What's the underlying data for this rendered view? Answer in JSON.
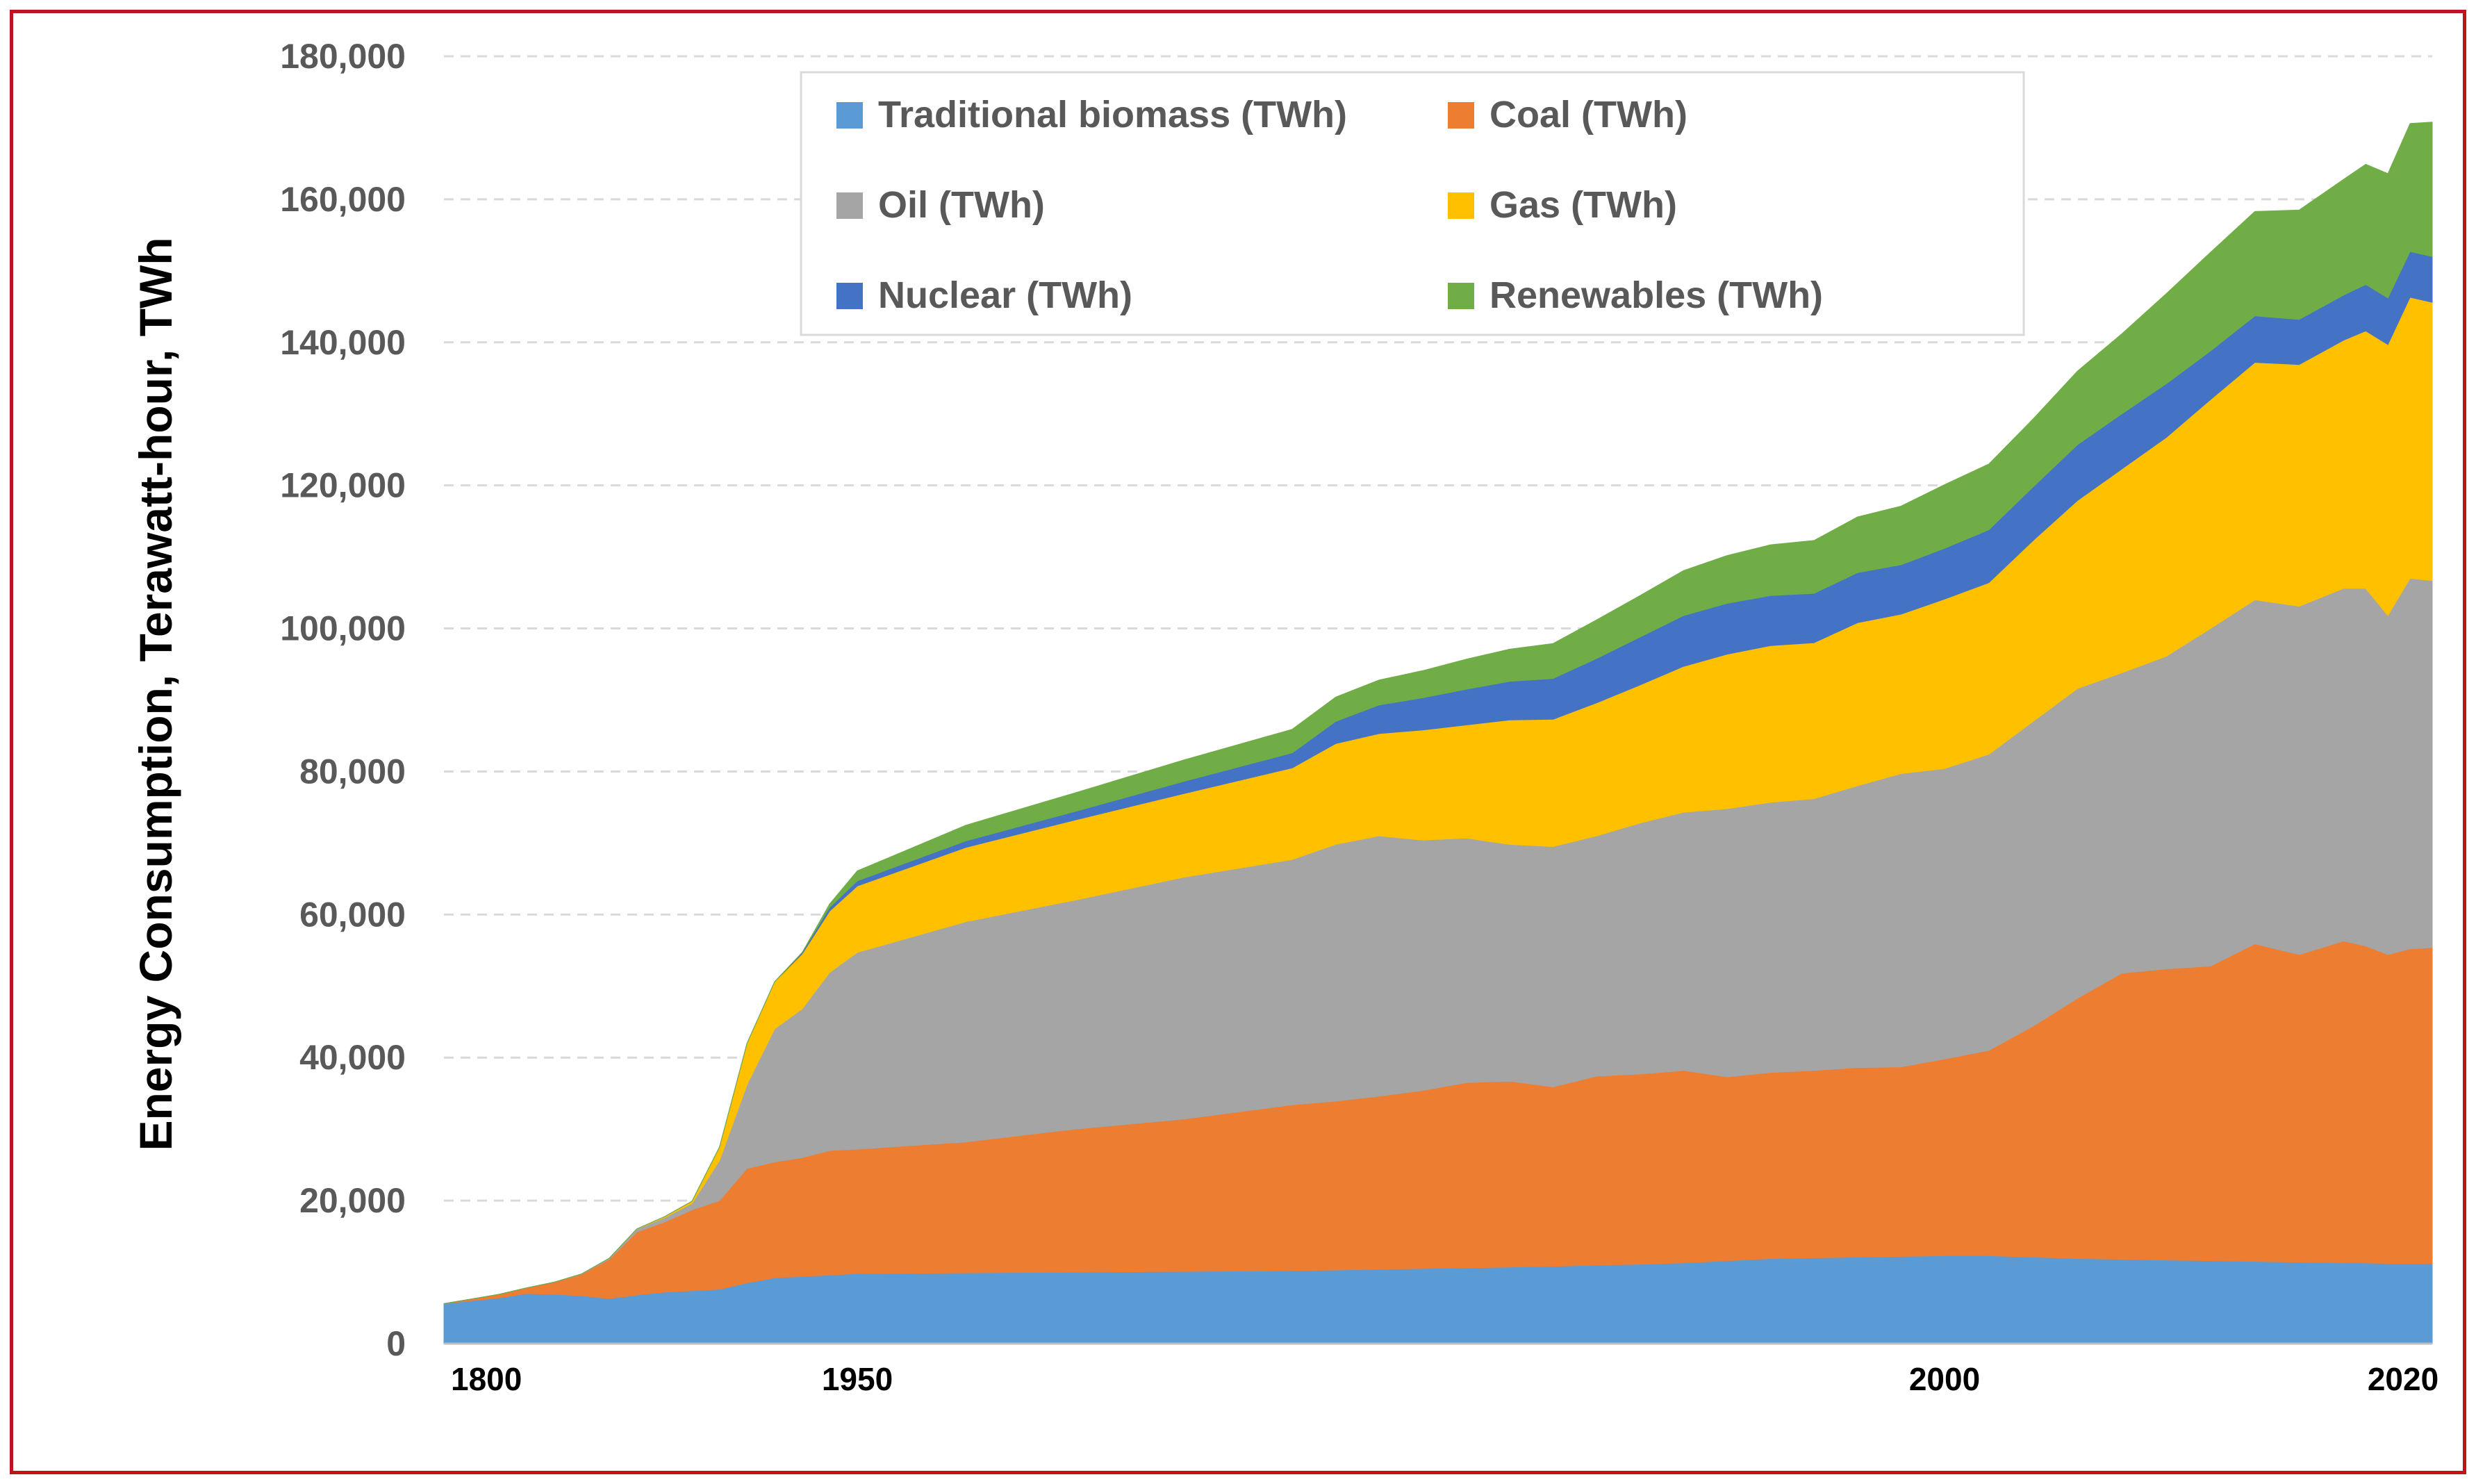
{
  "chart_data": {
    "type": "area",
    "stacked": true,
    "title": "",
    "xlabel": "",
    "ylabel": "Energy Consumption, Terawatt-hour, TWh",
    "ylim": [
      0,
      180000
    ],
    "yticks": [
      0,
      20000,
      40000,
      60000,
      80000,
      100000,
      120000,
      140000,
      160000,
      180000
    ],
    "ytick_labels": [
      "0",
      "20,000",
      "40,000",
      "60,000",
      "80,000",
      "100,000",
      "120,000",
      "140,000",
      "160,000",
      "180,000"
    ],
    "xtick_labels": [
      "1800",
      "1950",
      "2000",
      "2020"
    ],
    "grid": true,
    "legend_position": "top-center",
    "x": [
      1800,
      1810,
      1820,
      1830,
      1840,
      1850,
      1860,
      1870,
      1880,
      1890,
      1900,
      1910,
      1920,
      1930,
      1940,
      1950,
      1955,
      1960,
      1965,
      1970,
      1972,
      1974,
      1976,
      1978,
      1980,
      1982,
      1984,
      1986,
      1988,
      1990,
      1992,
      1994,
      1996,
      1998,
      2000,
      2002,
      2004,
      2006,
      2008,
      2010,
      2012,
      2014,
      2016,
      2018,
      2019,
      2020,
      2021,
      2022
    ],
    "series": [
      {
        "name": "Traditional biomass (TWh)",
        "color": "#5b9bd5",
        "values": [
          5600,
          6000,
          6400,
          7000,
          6900,
          6700,
          6300,
          6800,
          7200,
          7400,
          7600,
          8500,
          9200,
          9400,
          9600,
          9800,
          9900,
          10000,
          10100,
          10200,
          10300,
          10400,
          10500,
          10600,
          10700,
          10800,
          11000,
          11100,
          11300,
          11600,
          11900,
          12000,
          12100,
          12200,
          12300,
          12300,
          12100,
          11900,
          11800,
          11700,
          11600,
          11500,
          11400,
          11300,
          11300,
          11200,
          11200,
          11200
        ]
      },
      {
        "name": "Coal (TWh)",
        "color": "#ed7d31",
        "values": [
          0,
          250,
          500,
          800,
          1700,
          3000,
          5500,
          8800,
          9800,
          11300,
          12400,
          16000,
          16200,
          16600,
          17400,
          17400,
          18300,
          20000,
          21300,
          23200,
          23600,
          24200,
          24900,
          25900,
          26000,
          25100,
          26400,
          26600,
          26900,
          25700,
          26000,
          26200,
          26500,
          26500,
          27500,
          28700,
          32300,
          36400,
          40000,
          40700,
          41200,
          44400,
          43000,
          45000,
          44300,
          43200,
          44000,
          44200
        ]
      },
      {
        "name": "Oil (TWh)",
        "color": "#a5a5a5",
        "values": [
          0,
          0,
          0,
          0,
          0,
          50,
          150,
          400,
          600,
          900,
          5600,
          11700,
          18600,
          20800,
          24900,
          27500,
          30800,
          32000,
          33800,
          34300,
          35900,
          36400,
          35000,
          34200,
          33100,
          33600,
          33600,
          35100,
          36100,
          37500,
          37800,
          38000,
          39400,
          41000,
          40600,
          41400,
          42600,
          43300,
          42000,
          43700,
          47200,
          48100,
          48700,
          49300,
          50000,
          47400,
          51800,
          51300
        ]
      },
      {
        "name": "Gas (TWh)",
        "color": "#ffc000",
        "values": [
          0,
          0,
          0,
          0,
          0,
          0,
          0,
          50,
          150,
          300,
          1900,
          5800,
          6600,
          7700,
          8600,
          9300,
          10400,
          11200,
          11700,
          12800,
          14100,
          14300,
          15400,
          15800,
          17400,
          17800,
          18600,
          19300,
          20400,
          21600,
          21900,
          21800,
          22800,
          22300,
          23700,
          24000,
          25300,
          26300,
          28500,
          30600,
          32000,
          33200,
          33800,
          34700,
          36000,
          37900,
          39300,
          38900
        ]
      },
      {
        "name": "Nuclear (TWh)",
        "color": "#4472c4",
        "values": [
          0,
          0,
          0,
          0,
          0,
          0,
          0,
          0,
          0,
          0,
          0,
          0,
          0,
          200,
          500,
          700,
          900,
          1200,
          1700,
          2100,
          3100,
          4000,
          4500,
          5000,
          5400,
          5700,
          6200,
          6700,
          7100,
          7100,
          7000,
          6900,
          7000,
          6900,
          7100,
          7400,
          7500,
          7800,
          7700,
          7500,
          6800,
          6500,
          6300,
          6300,
          6500,
          6500,
          6400,
          6400
        ]
      },
      {
        "name": "Renewables (TWh)",
        "color": "#70ad47",
        "values": [
          0,
          0,
          0,
          0,
          0,
          0,
          0,
          0,
          0,
          0,
          0,
          0,
          0,
          0,
          500,
          1400,
          2200,
          2600,
          3000,
          3300,
          3400,
          3500,
          3800,
          4200,
          4500,
          4900,
          5400,
          5800,
          6300,
          6700,
          7100,
          7400,
          7800,
          8200,
          8900,
          9200,
          9500,
          10300,
          11200,
          12600,
          13800,
          14600,
          15300,
          16200,
          16800,
          17400,
          17900,
          18800
        ]
      }
    ]
  }
}
